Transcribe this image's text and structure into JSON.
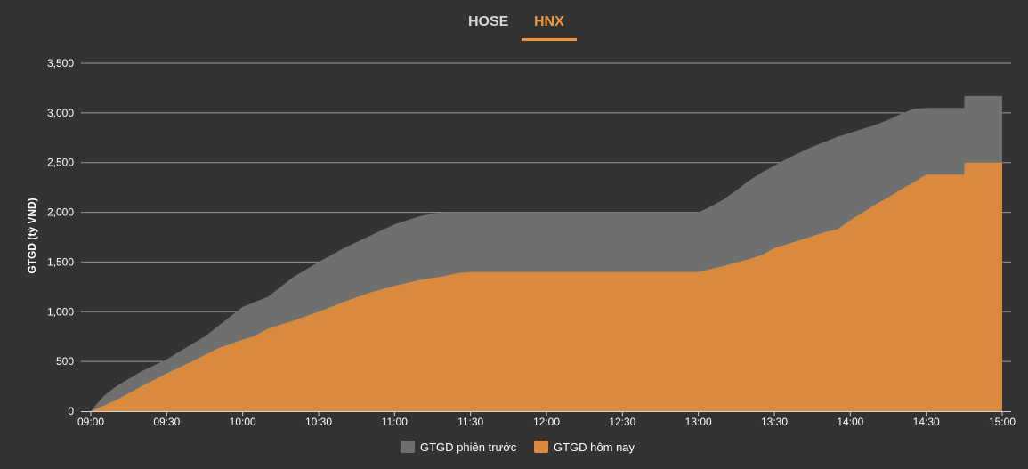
{
  "tabs": [
    {
      "label": "HOSE",
      "active": false
    },
    {
      "label": "HNX",
      "active": true
    }
  ],
  "colors": {
    "background": "#333333",
    "grid": "#9a9a9a",
    "previous": "#6f6f6f",
    "today": "#d98a3d",
    "tab_active": "#f09436",
    "tab_inactive": "#d6d6d6"
  },
  "chart_data": {
    "type": "area",
    "ylabel": "GTGD (tỷ VND)",
    "xlabel": "",
    "ylim": [
      0,
      3500
    ],
    "yticks": [
      "0",
      "500",
      "1,000",
      "1,500",
      "2,000",
      "2,500",
      "3,000",
      "3,500"
    ],
    "ytick_values": [
      0,
      500,
      1000,
      1500,
      2000,
      2500,
      3000,
      3500
    ],
    "xticks": [
      "09:00",
      "09:30",
      "10:00",
      "10:30",
      "11:00",
      "11:30",
      "12:00",
      "12:30",
      "13:00",
      "13:30",
      "14:00",
      "14:30",
      "15:00"
    ],
    "xlim_minutes": [
      0,
      360
    ],
    "grid": true,
    "legend_position": "bottom-center",
    "series": [
      {
        "name": "GTGD phiên trước",
        "x_minutes": [
          0,
          5,
          10,
          20,
          30,
          35,
          45,
          55,
          60,
          65,
          70,
          75,
          80,
          90,
          95,
          100,
          110,
          115,
          120,
          125,
          130,
          135,
          140,
          145,
          150,
          180,
          210,
          240,
          245,
          250,
          255,
          260,
          265,
          270,
          275,
          280,
          285,
          290,
          295,
          300,
          305,
          310,
          315,
          320,
          325,
          330,
          345,
          345.1,
          360
        ],
        "values": [
          0,
          150,
          250,
          400,
          520,
          600,
          750,
          950,
          1050,
          1100,
          1150,
          1250,
          1350,
          1500,
          1570,
          1640,
          1760,
          1820,
          1880,
          1920,
          1960,
          1990,
          2000,
          2000,
          2000,
          2000,
          2000,
          2000,
          2060,
          2130,
          2220,
          2320,
          2400,
          2470,
          2540,
          2600,
          2660,
          2710,
          2760,
          2800,
          2840,
          2880,
          2930,
          2990,
          3040,
          3050,
          3050,
          3170,
          3170
        ]
      },
      {
        "name": "GTGD hôm nay",
        "x_minutes": [
          0,
          10,
          20,
          30,
          40,
          50,
          60,
          65,
          70,
          75,
          80,
          90,
          95,
          100,
          110,
          120,
          130,
          140,
          145,
          150,
          180,
          210,
          240,
          245,
          250,
          260,
          265,
          270,
          275,
          280,
          285,
          290,
          295,
          300,
          305,
          310,
          315,
          320,
          325,
          330,
          345,
          345.1,
          360
        ],
        "values": [
          0,
          110,
          250,
          380,
          500,
          630,
          720,
          760,
          830,
          870,
          910,
          1000,
          1050,
          1100,
          1190,
          1260,
          1320,
          1360,
          1390,
          1400,
          1400,
          1400,
          1400,
          1430,
          1460,
          1530,
          1570,
          1640,
          1680,
          1720,
          1760,
          1800,
          1830,
          1920,
          2000,
          2080,
          2150,
          2230,
          2300,
          2380,
          2380,
          2500,
          2500
        ]
      }
    ]
  }
}
